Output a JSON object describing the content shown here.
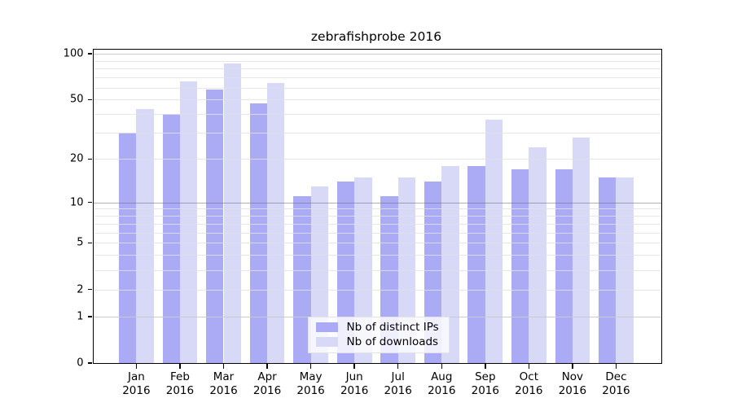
{
  "chart_data": {
    "type": "bar",
    "title": "zebrafishprobe 2016",
    "categories": [
      "Jan",
      "Feb",
      "Mar",
      "Apr",
      "May",
      "Jun",
      "Jul",
      "Aug",
      "Sep",
      "Oct",
      "Nov",
      "Dec"
    ],
    "category_year": "2016",
    "series": [
      {
        "name": "Nb of distinct IPs",
        "color": "#aaaaf5",
        "values": [
          30,
          40,
          58,
          47,
          11,
          14,
          11,
          14,
          18,
          17,
          17,
          15
        ]
      },
      {
        "name": "Nb of downloads",
        "color": "#d8d8f7",
        "values": [
          43,
          66,
          86,
          64,
          13,
          15,
          15,
          18,
          37,
          24,
          28,
          15
        ]
      }
    ],
    "yscale": "log1p",
    "ylim": [
      0,
      107
    ],
    "yticks": [
      0,
      1,
      2,
      5,
      10,
      20,
      50,
      100
    ],
    "grid": "horizontal log minor gridlines on",
    "gridlines_minor": [
      1,
      2,
      3,
      4,
      5,
      6,
      7,
      8,
      9,
      20,
      30,
      40,
      50,
      60,
      70,
      80,
      90
    ],
    "gridlines_major": [
      1,
      100
    ],
    "gridlines_dark": [
      10
    ],
    "legend_position": "inside bottom-center",
    "xlabel": "",
    "ylabel": ""
  }
}
